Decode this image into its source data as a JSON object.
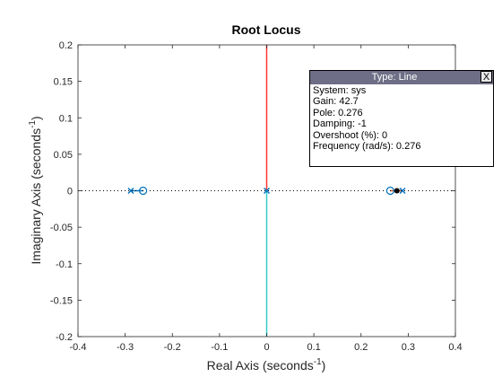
{
  "chart_data": {
    "type": "scatter",
    "title": "Root Locus",
    "xlabel": "Real Axis (seconds",
    "ylabel": "Imaginary Axis (seconds",
    "axis_unit_exponent": "-1",
    "xlim": [
      -0.4,
      0.4
    ],
    "ylim": [
      -0.2,
      0.2
    ],
    "xticks": [
      -0.4,
      -0.3,
      -0.2,
      -0.1,
      0,
      0.1,
      0.2,
      0.3,
      0.4
    ],
    "yticks": [
      -0.2,
      -0.15,
      -0.1,
      -0.05,
      0,
      0.05,
      0.1,
      0.15,
      0.2
    ],
    "xtick_labels": [
      "-0.4",
      "-0.3",
      "-0.2",
      "-0.1",
      "0",
      "0.1",
      "0.2",
      "0.3",
      "0.4"
    ],
    "ytick_labels": [
      "-0.2",
      "-0.15",
      "-0.1",
      "-0.05",
      "0",
      "0.05",
      "0.1",
      "0.15",
      "0.2"
    ],
    "grid": false,
    "poles": [
      [
        -0.288,
        0
      ],
      [
        0,
        0
      ],
      [
        0.288,
        0
      ]
    ],
    "zeros": [
      [
        -0.262,
        0
      ],
      [
        0.262,
        0
      ]
    ],
    "branches": [
      {
        "color": "#0072bd",
        "points": [
          [
            -0.288,
            0
          ],
          [
            -0.262,
            0
          ]
        ]
      },
      {
        "color": "#d95319",
        "points": [
          [
            0.288,
            0
          ],
          [
            0.262,
            0
          ]
        ]
      },
      {
        "color": "#ff3333",
        "points": [
          [
            0,
            0
          ],
          [
            0,
            0.2
          ]
        ]
      },
      {
        "color": "#33cccc",
        "points": [
          [
            0,
            0
          ],
          [
            0,
            -0.2
          ]
        ]
      }
    ],
    "selected_point": [
      0.276,
      0
    ],
    "colors": {
      "axis": "#262626",
      "pole_zero": "#0072bd",
      "real_axis_dotted": "#000000",
      "selected": "#000000"
    }
  },
  "datatip": {
    "title": "Type: Line",
    "close_label": "X",
    "lines": [
      "System: sys",
      "Gain: 42.7",
      "Pole: 0.276",
      "Damping: -1",
      "Overshoot (%): 0",
      "Frequency (rad/s): 0.276"
    ]
  }
}
